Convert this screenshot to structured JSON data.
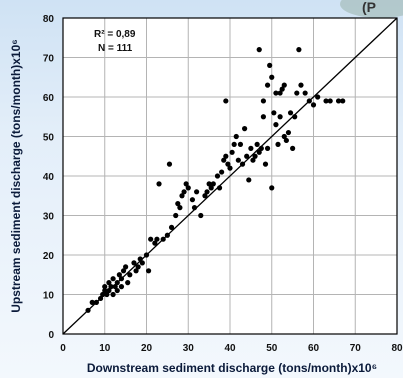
{
  "corner_fragment": "(P",
  "chart_data": {
    "type": "scatter",
    "title": "",
    "xlabel": "Downstream sediment discharge (tons/month)x10⁶",
    "ylabel": "Upstream sediment discharge (tons/month)x10⁶",
    "xlim": [
      0,
      80
    ],
    "ylim": [
      0,
      80
    ],
    "xticks": [
      "0",
      "10",
      "20",
      "30",
      "40",
      "50",
      "60",
      "70",
      "80"
    ],
    "yticks": [
      "0",
      "10",
      "20",
      "30",
      "40",
      "50",
      "60",
      "70",
      "80"
    ],
    "grid": true,
    "legend": "none",
    "annotations": {
      "r2": "R² = 0,89",
      "n": "N = 111"
    },
    "reference_line": {
      "x": [
        0,
        80
      ],
      "y": [
        0,
        80
      ],
      "label": ""
    },
    "colors": {
      "points": "#000000",
      "grid": "#b4b4b4",
      "background": "#ffffff",
      "line": "#000000"
    },
    "points": [
      [
        6,
        6
      ],
      [
        7,
        8
      ],
      [
        8,
        8
      ],
      [
        9,
        9
      ],
      [
        9.5,
        10
      ],
      [
        10,
        11
      ],
      [
        10,
        12
      ],
      [
        10.5,
        10
      ],
      [
        11,
        11
      ],
      [
        11,
        13
      ],
      [
        11.5,
        12
      ],
      [
        12,
        10
      ],
      [
        12,
        14
      ],
      [
        12.5,
        12
      ],
      [
        13,
        13
      ],
      [
        13,
        11
      ],
      [
        13.5,
        15
      ],
      [
        14,
        14
      ],
      [
        14,
        12
      ],
      [
        14.5,
        16
      ],
      [
        15,
        17
      ],
      [
        15.5,
        13
      ],
      [
        16,
        15
      ],
      [
        17,
        18
      ],
      [
        17.5,
        16
      ],
      [
        18,
        17
      ],
      [
        18.5,
        19
      ],
      [
        19,
        18
      ],
      [
        20,
        20
      ],
      [
        20.5,
        16
      ],
      [
        21,
        24
      ],
      [
        22,
        23
      ],
      [
        22.5,
        24
      ],
      [
        23,
        38
      ],
      [
        24,
        24
      ],
      [
        25,
        25
      ],
      [
        25.5,
        43
      ],
      [
        26,
        27
      ],
      [
        27,
        30
      ],
      [
        27.5,
        33
      ],
      [
        28,
        32
      ],
      [
        28.5,
        35
      ],
      [
        29,
        36
      ],
      [
        29.5,
        38
      ],
      [
        30,
        37
      ],
      [
        31,
        34
      ],
      [
        31.5,
        32
      ],
      [
        32,
        36
      ],
      [
        33,
        30
      ],
      [
        34,
        35
      ],
      [
        34.5,
        36
      ],
      [
        35,
        38
      ],
      [
        35.5,
        37
      ],
      [
        36,
        38
      ],
      [
        37,
        40
      ],
      [
        37.5,
        37
      ],
      [
        38,
        41
      ],
      [
        38.5,
        44
      ],
      [
        39,
        45
      ],
      [
        39,
        59
      ],
      [
        39.5,
        43
      ],
      [
        40,
        42
      ],
      [
        40.5,
        46
      ],
      [
        41,
        48
      ],
      [
        41.5,
        50
      ],
      [
        42,
        44
      ],
      [
        42.5,
        48
      ],
      [
        43,
        43
      ],
      [
        43.5,
        52
      ],
      [
        44,
        45
      ],
      [
        44.5,
        39
      ],
      [
        45,
        47
      ],
      [
        45.5,
        44
      ],
      [
        46,
        45
      ],
      [
        46.5,
        48
      ],
      [
        47,
        46
      ],
      [
        47,
        72
      ],
      [
        47.5,
        47
      ],
      [
        48,
        55
      ],
      [
        48,
        59
      ],
      [
        48.5,
        43
      ],
      [
        49,
        47
      ],
      [
        49,
        63
      ],
      [
        49.5,
        68
      ],
      [
        50,
        65
      ],
      [
        50,
        37
      ],
      [
        50.5,
        56
      ],
      [
        51,
        53
      ],
      [
        51,
        61
      ],
      [
        51.5,
        48
      ],
      [
        52,
        55
      ],
      [
        52,
        61
      ],
      [
        52.5,
        62
      ],
      [
        53,
        50
      ],
      [
        53,
        63
      ],
      [
        53.5,
        49
      ],
      [
        54,
        51
      ],
      [
        54.5,
        56
      ],
      [
        55,
        47
      ],
      [
        55.5,
        55
      ],
      [
        56,
        61
      ],
      [
        56.5,
        72
      ],
      [
        57,
        63
      ],
      [
        58,
        61
      ],
      [
        59,
        59
      ],
      [
        60,
        58
      ],
      [
        61,
        60
      ],
      [
        63,
        59
      ],
      [
        64,
        59
      ],
      [
        66,
        59
      ],
      [
        67,
        59
      ]
    ]
  }
}
